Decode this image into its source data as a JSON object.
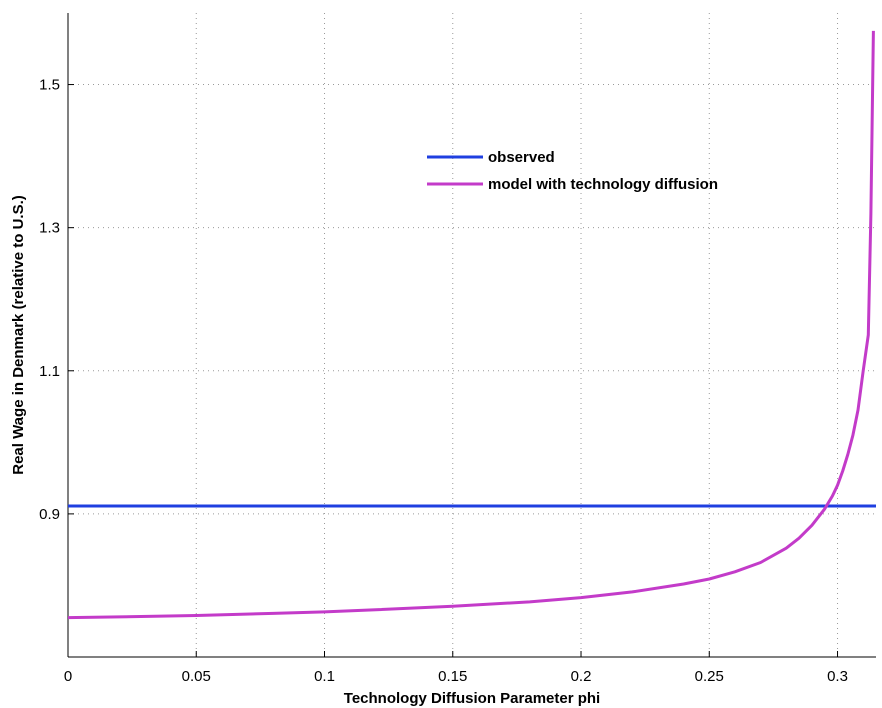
{
  "chart_data": {
    "type": "line",
    "title": "",
    "xlabel": "Technology Diffusion Parameter phi",
    "ylabel": "Real Wage in Denmark (relative to U.S.)",
    "xlim": [
      0,
      0.315
    ],
    "ylim": [
      0.7,
      1.6
    ],
    "xticks": [
      0,
      0.05,
      0.1,
      0.15,
      0.2,
      0.25,
      0.3
    ],
    "xtick_labels": [
      "0",
      "0.05",
      "0.1",
      "0.15",
      "0.2",
      "0.25",
      "0.3"
    ],
    "yticks": [
      0.9,
      1.1,
      1.3,
      1.5
    ],
    "ytick_labels": [
      "0.9",
      "1.1",
      "1.3",
      "1.5"
    ],
    "grid": true,
    "legend_position": "upper-center",
    "series": [
      {
        "name": "observed",
        "color": "#1f3fe0",
        "x": [
          0,
          0.315
        ],
        "y": [
          0.911,
          0.911
        ]
      },
      {
        "name": "model with technology diffusion",
        "color": "#c33bc9",
        "x": [
          0,
          0.02,
          0.05,
          0.08,
          0.1,
          0.12,
          0.15,
          0.18,
          0.2,
          0.22,
          0.24,
          0.25,
          0.26,
          0.27,
          0.28,
          0.285,
          0.29,
          0.295,
          0.298,
          0.3,
          0.302,
          0.304,
          0.306,
          0.308,
          0.31,
          0.312,
          0.313,
          0.314
        ],
        "y": [
          0.755,
          0.756,
          0.758,
          0.761,
          0.763,
          0.766,
          0.771,
          0.777,
          0.783,
          0.791,
          0.802,
          0.809,
          0.819,
          0.832,
          0.852,
          0.866,
          0.884,
          0.907,
          0.925,
          0.94,
          0.96,
          0.983,
          1.01,
          1.045,
          1.1,
          1.15,
          1.32,
          1.575
        ]
      }
    ]
  }
}
